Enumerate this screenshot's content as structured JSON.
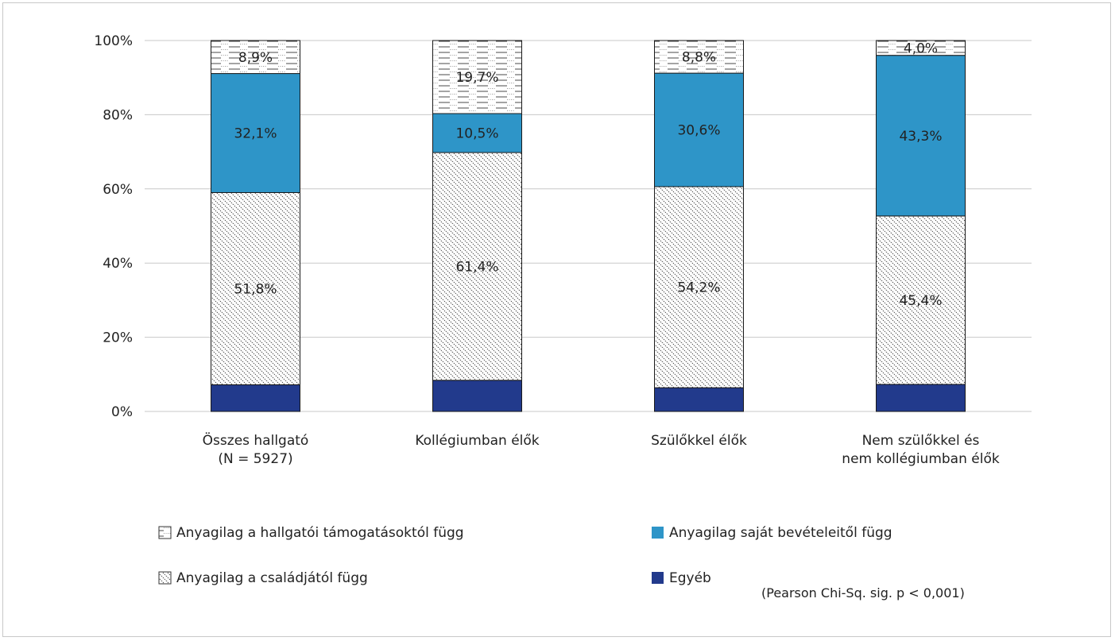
{
  "chart_data": {
    "type": "bar",
    "stacked": true,
    "categories": [
      [
        "Összes hallgató",
        "(N = 5927)"
      ],
      [
        "Kollégiumban élők"
      ],
      [
        "Szülőkkel élők"
      ],
      [
        "Nem szülőkkel és",
        "nem kollégiumban élők"
      ]
    ],
    "ylim": [
      0,
      100
    ],
    "yticks": [
      0,
      20,
      40,
      60,
      80,
      100
    ],
    "ytick_labels": [
      "0%",
      "20%",
      "40%",
      "60%",
      "80%",
      "100%"
    ],
    "grid": true,
    "legend_position": "bottom",
    "series": [
      {
        "name": "Egyéb",
        "values": [
          7.2,
          8.4,
          6.4,
          7.3
        ],
        "labels": [
          "",
          "",
          "",
          ""
        ],
        "color": "#223a8c",
        "pattern": "solid"
      },
      {
        "name": "Anyagilag a családjától függ",
        "values": [
          51.8,
          61.4,
          54.2,
          45.4
        ],
        "labels": [
          "51,8%",
          "61,4%",
          "54,2%",
          "45,4%"
        ],
        "color": "#ffffff",
        "pattern": "diagonal"
      },
      {
        "name": "Anyagilag saját bevételeitől függ",
        "values": [
          32.1,
          10.5,
          30.6,
          43.3
        ],
        "labels": [
          "32,1%",
          "10,5%",
          "30,6%",
          "43,3%"
        ],
        "color": "#2e95c8",
        "pattern": "solid"
      },
      {
        "name": "Anyagilag a hallgatói támogatásoktól függ",
        "values": [
          8.9,
          19.7,
          8.8,
          4.0
        ],
        "labels": [
          "8,9%",
          "19,7%",
          "8,8%",
          "4,0%"
        ],
        "color": "#ffffff",
        "pattern": "horizontal"
      }
    ],
    "legend_order": [
      3,
      2,
      1,
      0
    ]
  },
  "footnote": "(Pearson Chi-Sq. sig. p < 0,001)"
}
